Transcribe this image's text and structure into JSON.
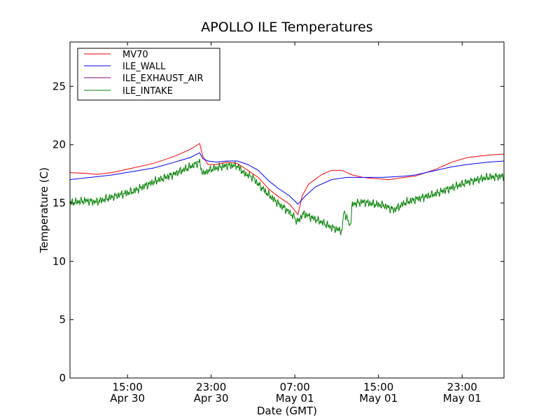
{
  "chart_data": {
    "type": "line",
    "title": "APOLLO ILE Temperatures",
    "xlabel": "Date (GMT)",
    "ylabel": "Temperature (C)",
    "ylim": [
      0,
      28.8
    ],
    "xlim_hours": [
      0,
      41.5
    ],
    "x_unit": "hours",
    "yticks": [
      0,
      5,
      10,
      15,
      20,
      25
    ],
    "xticks": [
      {
        "x": 5.5,
        "time": "15:00",
        "date": "Apr 30"
      },
      {
        "x": 13.5,
        "time": "23:00",
        "date": "Apr 30"
      },
      {
        "x": 21.5,
        "time": "07:00",
        "date": "May 01"
      },
      {
        "x": 29.5,
        "time": "15:00",
        "date": "May 01"
      },
      {
        "x": 37.5,
        "time": "23:00",
        "date": "May 01"
      }
    ],
    "legend_position": "top-left",
    "grid": false,
    "series": [
      {
        "name": "MV70",
        "color": "#ff0000",
        "points": [
          [
            0,
            17.6
          ],
          [
            1.5,
            17.55
          ],
          [
            2.5,
            17.45
          ],
          [
            4,
            17.6
          ],
          [
            6,
            18.0
          ],
          [
            8,
            18.4
          ],
          [
            10,
            19.0
          ],
          [
            11.5,
            19.6
          ],
          [
            12.4,
            20.1
          ],
          [
            12.7,
            19.0
          ],
          [
            13.2,
            18.3
          ],
          [
            14,
            18.3
          ],
          [
            15,
            18.5
          ],
          [
            16,
            18.4
          ],
          [
            17,
            17.8
          ],
          [
            18,
            17.2
          ],
          [
            19,
            16.2
          ],
          [
            20,
            15.5
          ],
          [
            21,
            14.9
          ],
          [
            21.8,
            14.0
          ],
          [
            22.2,
            15.6
          ],
          [
            22.8,
            16.6
          ],
          [
            24,
            17.4
          ],
          [
            25,
            17.8
          ],
          [
            26,
            17.8
          ],
          [
            27,
            17.4
          ],
          [
            28,
            17.2
          ],
          [
            29,
            17.1
          ],
          [
            30.5,
            17.0
          ],
          [
            32,
            17.2
          ],
          [
            33,
            17.3
          ],
          [
            35,
            17.9
          ],
          [
            36.5,
            18.5
          ],
          [
            38,
            18.9
          ],
          [
            40,
            19.1
          ],
          [
            41.5,
            19.2
          ]
        ]
      },
      {
        "name": "ILE_WALL",
        "color": "#0000ff",
        "points": [
          [
            0,
            17.0
          ],
          [
            2,
            17.2
          ],
          [
            4,
            17.4
          ],
          [
            6,
            17.7
          ],
          [
            8,
            18.0
          ],
          [
            10,
            18.5
          ],
          [
            11.5,
            18.9
          ],
          [
            12.4,
            19.3
          ],
          [
            12.7,
            18.8
          ],
          [
            13.2,
            18.6
          ],
          [
            14,
            18.5
          ],
          [
            15,
            18.6
          ],
          [
            16,
            18.6
          ],
          [
            17,
            18.3
          ],
          [
            18,
            17.8
          ],
          [
            19,
            16.9
          ],
          [
            20,
            16.2
          ],
          [
            21,
            15.6
          ],
          [
            21.8,
            14.9
          ],
          [
            22.5,
            15.6
          ],
          [
            23.5,
            16.4
          ],
          [
            25,
            17.0
          ],
          [
            26.5,
            17.2
          ],
          [
            28,
            17.2
          ],
          [
            30,
            17.2
          ],
          [
            32,
            17.3
          ],
          [
            33,
            17.4
          ],
          [
            35,
            17.8
          ],
          [
            36.5,
            18.1
          ],
          [
            38,
            18.3
          ],
          [
            40,
            18.5
          ],
          [
            41.5,
            18.6
          ]
        ]
      },
      {
        "name": "ILE_EXHAUST_AIR",
        "color": "#800080",
        "points": []
      },
      {
        "name": "ILE_INTAKE",
        "color": "#008000",
        "points": [
          [
            0,
            15.0
          ],
          [
            1.5,
            15.2
          ],
          [
            2.5,
            15.1
          ],
          [
            4,
            15.5
          ],
          [
            6,
            16.0
          ],
          [
            8,
            16.8
          ],
          [
            10,
            17.5
          ],
          [
            11.5,
            18.1
          ],
          [
            12.4,
            18.5
          ],
          [
            12.7,
            17.5
          ],
          [
            13.5,
            17.9
          ],
          [
            15,
            18.2
          ],
          [
            16,
            18.2
          ],
          [
            16.7,
            17.5
          ],
          [
            17.5,
            17.2
          ],
          [
            18,
            16.6
          ],
          [
            19,
            15.7
          ],
          [
            20,
            14.9
          ],
          [
            21,
            14.2
          ],
          [
            21.8,
            13.4
          ],
          [
            22.3,
            14.1
          ],
          [
            23,
            13.8
          ],
          [
            24,
            13.4
          ],
          [
            25,
            12.9
          ],
          [
            26,
            12.6
          ],
          [
            26.2,
            14.3
          ],
          [
            26.8,
            13.0
          ],
          [
            27,
            14.9
          ],
          [
            28,
            15.1
          ],
          [
            29,
            14.9
          ],
          [
            30,
            14.8
          ],
          [
            31,
            14.4
          ],
          [
            32,
            15.0
          ],
          [
            33,
            15.3
          ],
          [
            35,
            15.8
          ],
          [
            36.5,
            16.3
          ],
          [
            38,
            16.8
          ],
          [
            40,
            17.2
          ],
          [
            41.5,
            17.3
          ]
        ]
      }
    ]
  }
}
